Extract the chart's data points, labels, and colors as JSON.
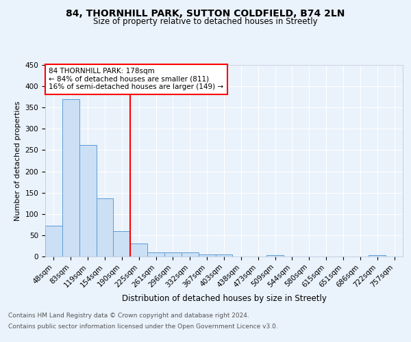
{
  "title1": "84, THORNHILL PARK, SUTTON COLDFIELD, B74 2LN",
  "title2": "Size of property relative to detached houses in Streetly",
  "xlabel": "Distribution of detached houses by size in Streetly",
  "ylabel": "Number of detached properties",
  "bin_labels": [
    "48sqm",
    "83sqm",
    "119sqm",
    "154sqm",
    "190sqm",
    "225sqm",
    "261sqm",
    "296sqm",
    "332sqm",
    "367sqm",
    "403sqm",
    "438sqm",
    "473sqm",
    "509sqm",
    "544sqm",
    "580sqm",
    "615sqm",
    "651sqm",
    "686sqm",
    "722sqm",
    "757sqm"
  ],
  "bar_heights": [
    72,
    370,
    262,
    137,
    60,
    30,
    10,
    10,
    10,
    5,
    5,
    0,
    0,
    4,
    0,
    0,
    0,
    0,
    0,
    4,
    0
  ],
  "bar_color": "#cce0f5",
  "bar_edge_color": "#5b9bd5",
  "ylim": [
    0,
    450
  ],
  "yticks": [
    0,
    50,
    100,
    150,
    200,
    250,
    300,
    350,
    400,
    450
  ],
  "red_line_bin_index": 4,
  "marker_label": "84 THORNHILL PARK: 178sqm",
  "annotation_line1": "← 84% of detached houses are smaller (811)",
  "annotation_line2": "16% of semi-detached houses are larger (149) →",
  "footer1": "Contains HM Land Registry data © Crown copyright and database right 2024.",
  "footer2": "Contains public sector information licensed under the Open Government Licence v3.0.",
  "background_color": "#eaf2fb",
  "plot_bg_color": "#eaf2fb",
  "grid_color": "#ffffff",
  "title1_fontsize": 10,
  "title2_fontsize": 8.5,
  "xlabel_fontsize": 8.5,
  "ylabel_fontsize": 8,
  "tick_fontsize": 7.5,
  "annot_fontsize": 7.5,
  "footer_fontsize": 6.5
}
